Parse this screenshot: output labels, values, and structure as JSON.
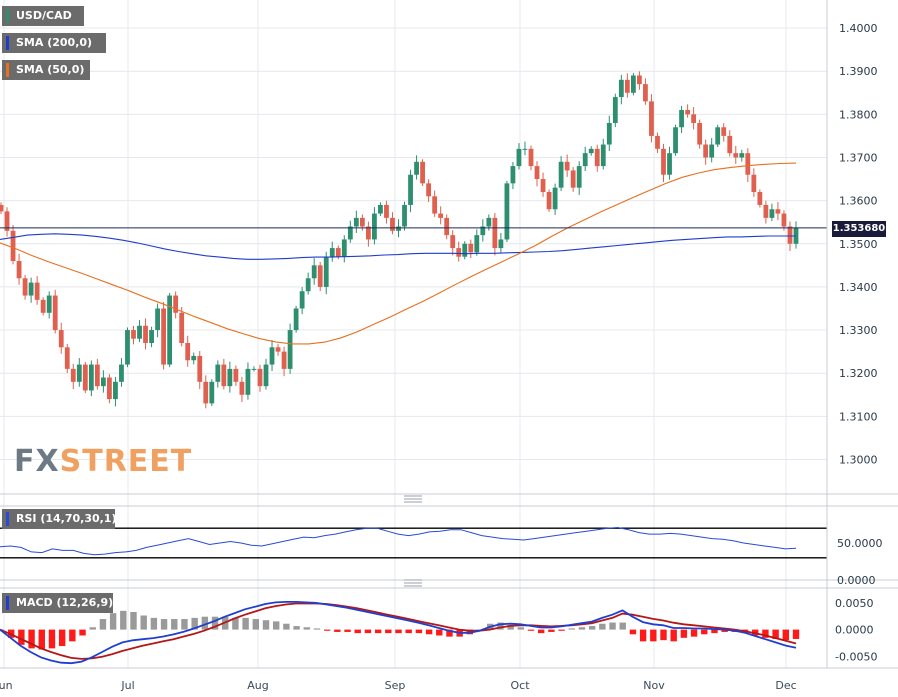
{
  "colors": {
    "up": "#2d8f6f",
    "down": "#e06050",
    "sma200": "#1f3ccc",
    "sma50": "#e8701e",
    "rsi": "#2a4ad8",
    "macd": "#1f3fd0",
    "signal": "#b51616",
    "hist_pos": "#9a9a9a",
    "hist_neg": "#ff1a1a",
    "grid": "#e4e8ee"
  },
  "legends": {
    "symbol": "USD/CAD",
    "sma200": "SMA (200,0)",
    "sma50": "SMA (50,0)",
    "rsi": "RSI (14,70,30,1)",
    "macd": "MACD (12,26,9)"
  },
  "price_label": "1.353680",
  "watermark": {
    "part1": "FX",
    "part2": "STREET"
  },
  "x_ticks": [
    "Jun",
    "Jul",
    "Aug",
    "Sep",
    "Oct",
    "Nov",
    "Dec"
  ],
  "chart_data": {
    "type": "candlestick",
    "price_axis": {
      "min": 1.292,
      "max": 1.4065,
      "ticks": [
        "1.3000",
        "1.3100",
        "1.3200",
        "1.3300",
        "1.3400",
        "1.3500",
        "1.3600",
        "1.3700",
        "1.3800",
        "1.3900",
        "1.4000"
      ]
    },
    "last_price": 1.35368,
    "closes": [
      1.3575,
      1.353,
      1.346,
      1.342,
      1.338,
      1.341,
      1.337,
      1.334,
      1.338,
      1.33,
      1.326,
      1.321,
      1.318,
      1.322,
      1.316,
      1.322,
      1.317,
      1.319,
      1.314,
      1.318,
      1.322,
      1.33,
      1.328,
      1.331,
      1.327,
      1.33,
      1.335,
      1.322,
      1.338,
      1.334,
      1.327,
      1.323,
      1.324,
      1.318,
      1.313,
      1.318,
      1.322,
      1.317,
      1.321,
      1.318,
      1.315,
      1.321,
      1.321,
      1.317,
      1.322,
      1.326,
      1.325,
      1.321,
      1.33,
      1.335,
      1.339,
      1.342,
      1.345,
      1.34,
      1.347,
      1.349,
      1.347,
      1.351,
      1.354,
      1.356,
      1.354,
      1.351,
      1.357,
      1.359,
      1.356,
      1.353,
      1.354,
      1.359,
      1.366,
      1.369,
      1.364,
      1.361,
      1.357,
      1.356,
      1.352,
      1.349,
      1.347,
      1.35,
      1.348,
      1.352,
      1.354,
      1.356,
      1.349,
      1.351,
      1.364,
      1.368,
      1.372,
      1.372,
      1.368,
      1.365,
      1.362,
      1.358,
      1.363,
      1.369,
      1.367,
      1.363,
      1.368,
      1.371,
      1.372,
      1.368,
      1.373,
      1.378,
      1.384,
      1.388,
      1.385,
      1.389,
      1.387,
      1.383,
      1.375,
      1.372,
      1.366,
      1.371,
      1.377,
      1.381,
      1.38,
      1.378,
      1.373,
      1.37,
      1.373,
      1.377,
      1.375,
      1.371,
      1.37,
      1.371,
      1.366,
      1.362,
      1.359,
      1.356,
      1.358,
      1.357,
      1.354,
      1.35,
      1.35368
    ],
    "sma200": [
      1.351,
      1.3515,
      1.352,
      1.3522,
      1.3523,
      1.3522,
      1.352,
      1.3517,
      1.3513,
      1.3508,
      1.3502,
      1.3495,
      1.3488,
      1.3482,
      1.3477,
      1.3472,
      1.3469,
      1.3466,
      1.3464,
      1.3464,
      1.3465,
      1.3466,
      1.3468,
      1.3469,
      1.3469,
      1.347,
      1.3471,
      1.3472,
      1.3474,
      1.3475,
      1.3477,
      1.3478,
      1.3478,
      1.3478,
      1.3477,
      1.3478,
      1.3478,
      1.3479,
      1.348,
      1.3481,
      1.3482,
      1.3484,
      1.3487,
      1.349,
      1.3493,
      1.3496,
      1.3499,
      1.3502,
      1.3505,
      1.3508,
      1.351,
      1.3512,
      1.3514,
      1.3516,
      1.3516,
      1.3517,
      1.3518,
      1.3518,
      1.3518
    ],
    "sma50": [
      1.3502,
      1.3488,
      1.3472,
      1.3458,
      1.3445,
      1.3432,
      1.3418,
      1.3404,
      1.339,
      1.3375,
      1.3361,
      1.3346,
      1.3331,
      1.3317,
      1.3303,
      1.3291,
      1.328,
      1.3272,
      1.3268,
      1.3268,
      1.3272,
      1.3282,
      1.3296,
      1.3313,
      1.333,
      1.3348,
      1.3366,
      1.3385,
      1.3405,
      1.3424,
      1.3442,
      1.346,
      1.3478,
      1.3497,
      1.3518,
      1.3538,
      1.3556,
      1.3574,
      1.3591,
      1.3608,
      1.3624,
      1.364,
      1.3654,
      1.3664,
      1.3672,
      1.3677,
      1.3681,
      1.3684,
      1.3686,
      1.3687
    ],
    "rsi": {
      "axis_ticks": [
        "50.0000",
        "0.0000"
      ],
      "levels": [
        70,
        30
      ],
      "values": [
        45,
        46,
        44,
        38,
        37,
        42,
        40,
        40,
        36,
        34,
        35,
        37,
        38,
        40,
        44,
        47,
        50,
        53,
        56,
        52,
        48,
        50,
        52,
        50,
        47,
        46,
        49,
        52,
        55,
        58,
        57,
        60,
        62,
        65,
        68,
        70,
        70,
        66,
        62,
        60,
        62,
        65,
        66,
        68,
        68,
        64,
        60,
        58,
        56,
        55,
        54,
        56,
        58,
        60,
        62,
        64,
        66,
        68,
        70,
        71,
        68,
        64,
        62,
        62,
        63,
        62,
        60,
        58,
        56,
        55,
        53,
        50,
        48,
        46,
        44,
        42,
        43
      ]
    },
    "macd": {
      "axis_ticks": [
        "0.0050",
        "0.0000",
        "-0.0050"
      ],
      "macd": [
        0.0,
        -0.0015,
        -0.003,
        -0.0042,
        -0.0052,
        -0.0058,
        -0.0062,
        -0.0063,
        -0.006,
        -0.0052,
        -0.0042,
        -0.0032,
        -0.0024,
        -0.002,
        -0.0018,
        -0.0016,
        -0.0013,
        -0.0009,
        -0.0004,
        0.0002,
        0.0009,
        0.0016,
        0.0024,
        0.0031,
        0.0038,
        0.0043,
        0.0048,
        0.0051,
        0.0052,
        0.0052,
        0.0051,
        0.005,
        0.0047,
        0.0044,
        0.0041,
        0.0037,
        0.0033,
        0.0029,
        0.0025,
        0.0021,
        0.0017,
        0.0013,
        0.0008,
        0.0003,
        -0.0002,
        -0.0006,
        -0.0006,
        -0.0002,
        0.0005,
        0.001,
        0.0011,
        0.001,
        0.0007,
        0.0004,
        0.0004,
        0.0006,
        0.0009,
        0.0012,
        0.0015,
        0.0022,
        0.0028,
        0.0036,
        0.0024,
        0.0014,
        0.001,
        0.0008,
        0.0003,
        0.0003,
        0.0002,
        0.0002,
        0.0001,
        0.0,
        -0.0002,
        -0.0006,
        -0.0012,
        -0.0018,
        -0.0024,
        -0.003,
        -0.0034
      ],
      "signal": [
        0.0,
        -0.0008,
        -0.0017,
        -0.0026,
        -0.0035,
        -0.0042,
        -0.0048,
        -0.0053,
        -0.0055,
        -0.0054,
        -0.0051,
        -0.0046,
        -0.004,
        -0.0035,
        -0.003,
        -0.0026,
        -0.0022,
        -0.0018,
        -0.0013,
        -0.0008,
        -0.0002,
        0.0005,
        0.0013,
        0.0021,
        0.0028,
        0.0034,
        0.004,
        0.0044,
        0.0047,
        0.0049,
        0.0049,
        0.0049,
        0.0048,
        0.0046,
        0.0043,
        0.004,
        0.0036,
        0.0032,
        0.0028,
        0.0024,
        0.002,
        0.0016,
        0.0012,
        0.0008,
        0.0004,
        0.0,
        -0.0002,
        -0.0002,
        0.0,
        0.0004,
        0.0007,
        0.0008,
        0.0008,
        0.0007,
        0.0006,
        0.0007,
        0.0008,
        0.001,
        0.0012,
        0.0017,
        0.0022,
        0.003,
        0.0028,
        0.0024,
        0.002,
        0.0017,
        0.0013,
        0.001,
        0.0008,
        0.0006,
        0.0004,
        0.0002,
        0.0,
        -0.0003,
        -0.0007,
        -0.0011,
        -0.0016,
        -0.0021,
        -0.0026
      ]
    }
  }
}
